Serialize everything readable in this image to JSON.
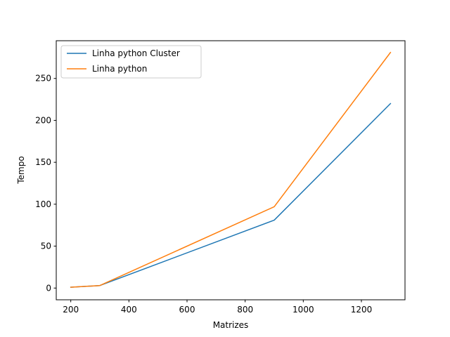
{
  "chart_data": {
    "type": "line",
    "title": "",
    "xlabel": "Matrizes",
    "ylabel": "Tempo",
    "xlim": [
      150,
      1350
    ],
    "ylim": [
      -14,
      295
    ],
    "xticks": [
      200,
      400,
      600,
      800,
      1000,
      1200
    ],
    "yticks": [
      0,
      50,
      100,
      150,
      200,
      250
    ],
    "grid": false,
    "legend_position": "top-left",
    "series": [
      {
        "name": "Linha python Cluster",
        "color": "#1f77b4",
        "x": [
          200,
          300,
          900,
          1300
        ],
        "y": [
          1,
          3,
          81,
          220
        ]
      },
      {
        "name": "Linha python",
        "color": "#ff7f0e",
        "x": [
          200,
          300,
          900,
          1300
        ],
        "y": [
          1,
          3,
          97,
          281
        ]
      }
    ]
  }
}
